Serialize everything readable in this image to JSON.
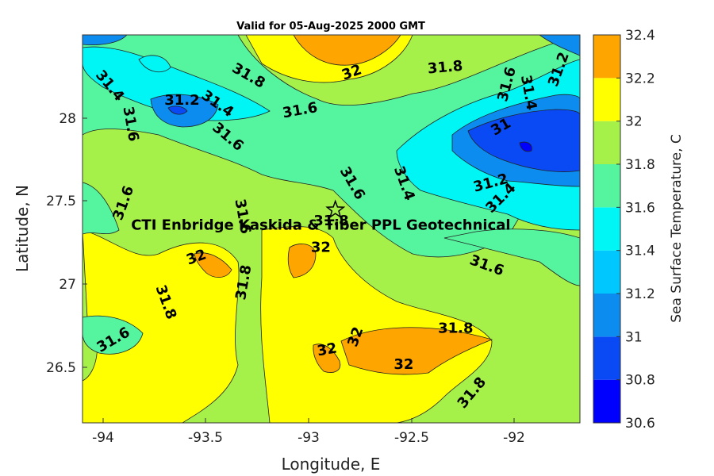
{
  "chart_data": {
    "type": "contour",
    "title": "Valid for 05-Aug-2025 2000 GMT",
    "xlabel": "Longitude, E",
    "ylabel": "Latitude, N",
    "xlim": [
      -94.1,
      -91.7
    ],
    "ylim": [
      26.15,
      28.5
    ],
    "x_ticks": [
      -94,
      -93.5,
      -93,
      -92.5,
      -92
    ],
    "x_tick_labels": [
      "-94",
      "-93.5",
      "-93",
      "-92.5",
      "-92"
    ],
    "y_ticks": [
      26.5,
      27,
      27.5,
      28
    ],
    "y_tick_labels": [
      "26.5",
      "27",
      "27.5",
      "28"
    ],
    "colorbar": {
      "label": "Sea Surface Temperature, C",
      "levels": [
        30.6,
        30.8,
        31,
        31.2,
        31.4,
        31.6,
        31.8,
        32,
        32.2,
        32.4
      ],
      "tick_labels": [
        "30.6",
        "30.8",
        "31",
        "31.2",
        "31.4",
        "31.6",
        "31.8",
        "32",
        "32.2",
        "32.4"
      ],
      "colors": [
        "#0000ff",
        "#0a4af5",
        "#0d8cf0",
        "#00c8ff",
        "#00f5f5",
        "#55f5a0",
        "#a6f04a",
        "#ffff00",
        "#ffa500",
        "#ff5500"
      ]
    },
    "contour_labels": [
      {
        "text": "31.4",
        "lon": -93.97,
        "lat": 28.19,
        "angle": 50
      },
      {
        "text": "31.6",
        "lon": -93.87,
        "lat": 27.96,
        "angle": 80
      },
      {
        "text": "31.2",
        "lon": -93.62,
        "lat": 28.1,
        "angle": 0
      },
      {
        "text": "31.4",
        "lon": -93.45,
        "lat": 28.08,
        "angle": 35
      },
      {
        "text": "31.8",
        "lon": -93.3,
        "lat": 28.25,
        "angle": 30
      },
      {
        "text": "31.6",
        "lon": -93.05,
        "lat": 28.04,
        "angle": -10
      },
      {
        "text": "31.6",
        "lon": -93.4,
        "lat": 27.88,
        "angle": 40
      },
      {
        "text": "32",
        "lon": -92.8,
        "lat": 28.27,
        "angle": -20
      },
      {
        "text": "31.8",
        "lon": -92.35,
        "lat": 28.3,
        "angle": -5
      },
      {
        "text": "31.6",
        "lon": -92.05,
        "lat": 28.2,
        "angle": -75
      },
      {
        "text": "31.4",
        "lon": -91.95,
        "lat": 28.15,
        "angle": 80
      },
      {
        "text": "31.2",
        "lon": -91.8,
        "lat": 28.29,
        "angle": -70
      },
      {
        "text": "31",
        "lon": -92.08,
        "lat": 27.94,
        "angle": -30
      },
      {
        "text": "31.2",
        "lon": -92.13,
        "lat": 27.6,
        "angle": -15
      },
      {
        "text": "31.4",
        "lon": -92.08,
        "lat": 27.51,
        "angle": -45
      },
      {
        "text": "31.4",
        "lon": -92.55,
        "lat": 27.6,
        "angle": 70
      },
      {
        "text": "31.6",
        "lon": -92.8,
        "lat": 27.6,
        "angle": 60
      },
      {
        "text": "31.6",
        "lon": -93.9,
        "lat": 27.48,
        "angle": -70
      },
      {
        "text": "31.6",
        "lon": -93.33,
        "lat": 27.4,
        "angle": 80
      },
      {
        "text": "31.8",
        "lon": -92.9,
        "lat": 27.37,
        "angle": 0
      },
      {
        "text": "32",
        "lon": -93.55,
        "lat": 27.15,
        "angle": -20
      },
      {
        "text": "32",
        "lon": -92.95,
        "lat": 27.21,
        "angle": 0
      },
      {
        "text": "31.8",
        "lon": -93.32,
        "lat": 27.0,
        "angle": -80
      },
      {
        "text": "31.8",
        "lon": -93.7,
        "lat": 26.88,
        "angle": 70
      },
      {
        "text": "31.6",
        "lon": -92.15,
        "lat": 27.1,
        "angle": 20
      },
      {
        "text": "31.6",
        "lon": -93.95,
        "lat": 26.65,
        "angle": -30
      },
      {
        "text": "31.8",
        "lon": -92.3,
        "lat": 26.72,
        "angle": 0
      },
      {
        "text": "32",
        "lon": -92.92,
        "lat": 26.59,
        "angle": -10
      },
      {
        "text": "32",
        "lon": -92.78,
        "lat": 26.67,
        "angle": -70
      },
      {
        "text": "32",
        "lon": -92.55,
        "lat": 26.5,
        "angle": 0
      },
      {
        "text": "31.8",
        "lon": -92.22,
        "lat": 26.33,
        "angle": -50
      }
    ],
    "annotation": {
      "text": "CTI Enbridge  Kaskida & Tiber PPL Geotechnical",
      "lon": -92.95,
      "lat": 27.35
    },
    "site_marker": {
      "symbol": "star",
      "lon": -92.88,
      "lat": 27.44
    }
  }
}
